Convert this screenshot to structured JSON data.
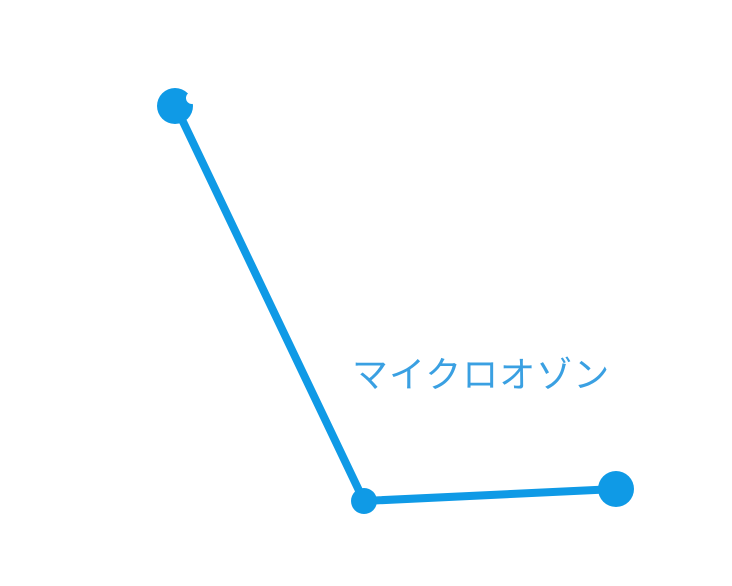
{
  "diagram": {
    "label": "マイクロオゾン",
    "colors": {
      "line": "#0f9ae6",
      "label": "#3aa0e2"
    }
  }
}
